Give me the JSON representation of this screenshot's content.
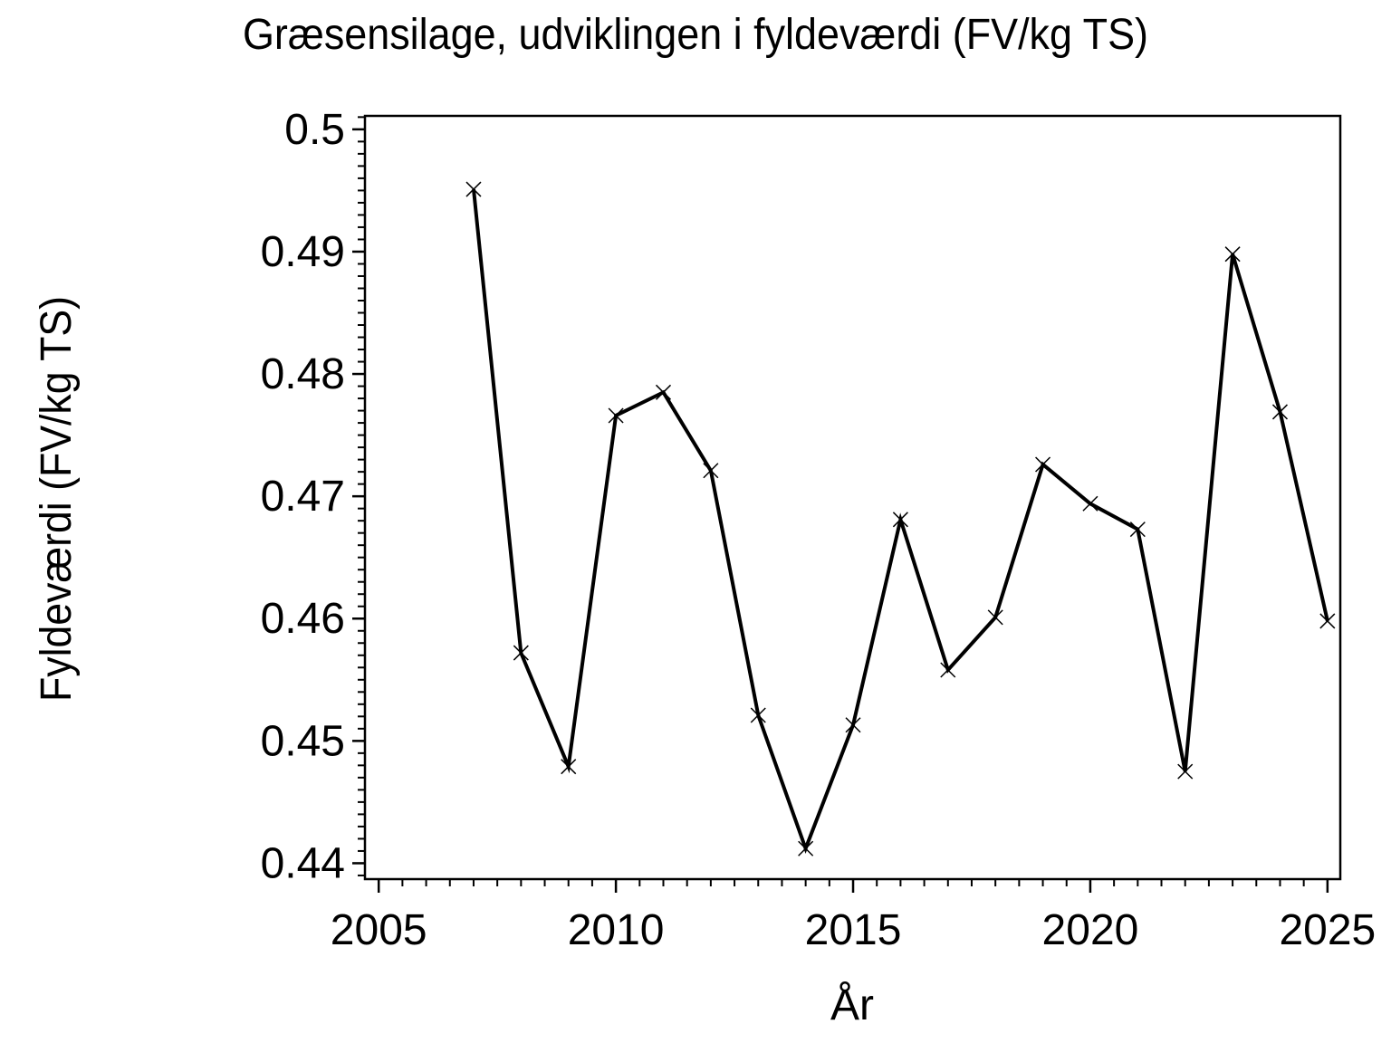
{
  "page": {
    "background": "#ffffff",
    "foreground": "#000000"
  },
  "chart_data": {
    "type": "line",
    "title": "Græsensilage, udviklingen i fyldeværdi (FV/kg TS)",
    "xlabel": "År",
    "ylabel": "Fyldeværdi (FV/kg TS)",
    "series": [
      {
        "name": "Fyldeværdi",
        "x": [
          2007,
          2008,
          2009,
          2010,
          2011,
          2012,
          2013,
          2014,
          2015,
          2016,
          2017,
          2018,
          2019,
          2020,
          2021,
          2022,
          2023,
          2024,
          2025
        ],
        "y": [
          0.4951,
          0.4572,
          0.4479,
          0.4766,
          0.4785,
          0.4721,
          0.4521,
          0.4412,
          0.4513,
          0.4681,
          0.4558,
          0.4601,
          0.4726,
          0.4694,
          0.4673,
          0.4475,
          0.4898,
          0.4769,
          0.4598
        ]
      }
    ],
    "marker": "x",
    "line_color": "#000000",
    "axis_color": "#000000",
    "background": "#ffffff",
    "grid": false,
    "legend": null,
    "xlim": [
      2004.71,
      2025.27
    ],
    "ylim": [
      0.4387,
      0.5011
    ],
    "x_axis": {
      "major_ticks": [
        2005,
        2010,
        2015,
        2020,
        2025
      ],
      "major_tick_labels": [
        "2005",
        "2010",
        "2015",
        "2020",
        "2025"
      ],
      "minor_tick_step": 0.5
    },
    "y_axis": {
      "major_ticks": [
        0.44,
        0.45,
        0.46,
        0.47,
        0.48,
        0.49,
        0.5
      ],
      "major_tick_labels": [
        "0.44",
        "0.45",
        "0.46",
        "0.47",
        "0.48",
        "0.49",
        "0.5"
      ],
      "minor_tick_step": 0.001
    }
  }
}
